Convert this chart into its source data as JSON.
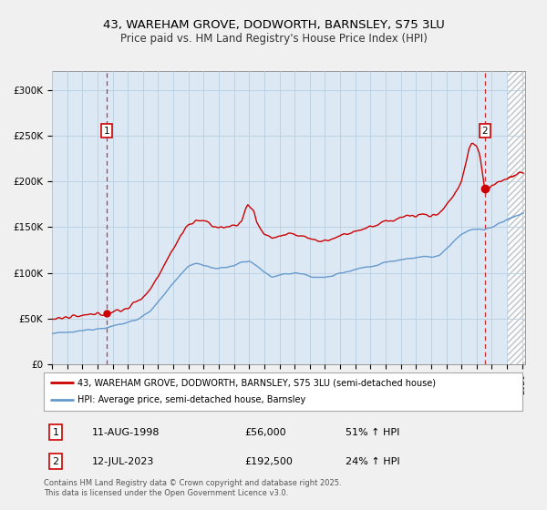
{
  "title": "43, WAREHAM GROVE, DODWORTH, BARNSLEY, S75 3LU",
  "subtitle": "Price paid vs. HM Land Registry's House Price Index (HPI)",
  "background_color": "#f0f0f0",
  "plot_bg_color": "#dce9f5",
  "grid_color": "#b8cfe0",
  "hpi_color": "#6699cc",
  "price_color": "#cc0000",
  "marker1_date": 1998.61,
  "marker1_price": 56000,
  "marker2_date": 2023.53,
  "marker2_price": 192500,
  "transaction1_label": "11-AUG-1998",
  "transaction1_price": "£56,000",
  "transaction1_hpi": "51% ↑ HPI",
  "transaction2_label": "12-JUL-2023",
  "transaction2_price": "£192,500",
  "transaction2_hpi": "24% ↑ HPI",
  "legend_line1": "43, WAREHAM GROVE, DODWORTH, BARNSLEY, S75 3LU (semi-detached house)",
  "legend_line2": "HPI: Average price, semi-detached house, Barnsley",
  "footer": "Contains HM Land Registry data © Crown copyright and database right 2025.\nThis data is licensed under the Open Government Licence v3.0.",
  "ylim": [
    0,
    320000
  ],
  "xlim_start": 1995.0,
  "xlim_end": 2026.2,
  "hatch_start": 2025.0,
  "yticks": [
    0,
    50000,
    100000,
    150000,
    200000,
    250000,
    300000
  ],
  "ytick_labels": [
    "£0",
    "£50K",
    "£100K",
    "£150K",
    "£200K",
    "£250K",
    "£300K"
  ]
}
